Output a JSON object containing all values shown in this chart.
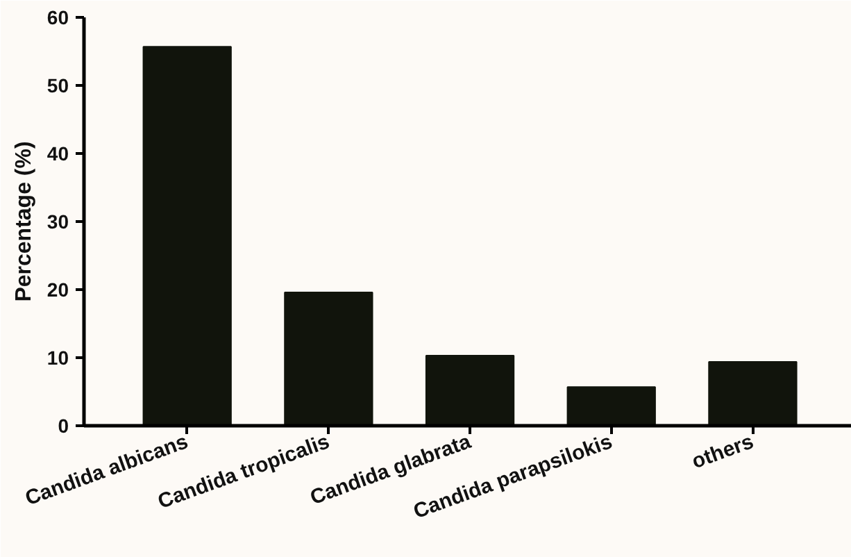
{
  "chart_data": {
    "type": "bar",
    "ylabel": "Percentage (%)",
    "categories": [
      "Candida albicans",
      "Candida tropicalis",
      "Candida glabrata",
      "Candida parapsilokis",
      "others"
    ],
    "values": [
      55.7,
      19.6,
      10.3,
      5.7,
      9.4
    ],
    "color": "#11140c",
    "ylim": [
      0,
      60
    ],
    "yticks": [
      0,
      10,
      20,
      30,
      40,
      50,
      60
    ],
    "grid": false
  }
}
